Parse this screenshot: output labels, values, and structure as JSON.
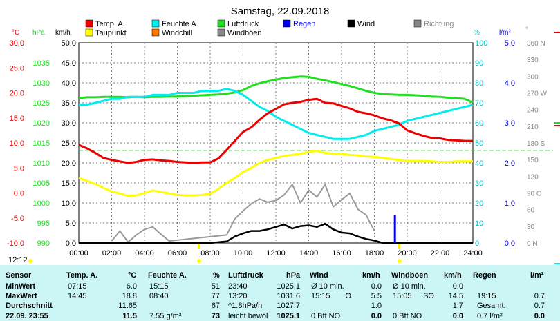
{
  "title": "Samstag, 22.09.2018",
  "clock": "12:12",
  "colors": {
    "temp": "#ee0000",
    "dew": "#ffff00",
    "humidity": "#00eeee",
    "pressure": "#22dd22",
    "windchill": "#ff7700",
    "wind": "#000000",
    "gust": "#999999",
    "rain": "#0000ee",
    "direction": "#888888"
  },
  "legend": [
    {
      "key": "temp",
      "label": "Temp. A.",
      "color": "#ee0000"
    },
    {
      "key": "humidity",
      "label": "Feuchte A.",
      "color": "#00eeee"
    },
    {
      "key": "pressure",
      "label": "Luftdruck",
      "color": "#22dd22"
    },
    {
      "key": "rain",
      "label": "Regen",
      "color": "#0000ee"
    },
    {
      "key": "wind",
      "label": "Wind",
      "color": "#000000"
    },
    {
      "key": "direction",
      "label": "Richtung",
      "color": "#888888"
    },
    {
      "key": "dew",
      "label": "Taupunkt",
      "color": "#ffff00"
    },
    {
      "key": "windchill",
      "label": "Windchill",
      "color": "#ff7700"
    },
    {
      "key": "gust",
      "label": "Windböen",
      "color": "#888888"
    }
  ],
  "chart_data": {
    "type": "line",
    "title": "Samstag, 22.09.2018",
    "x_ticks": [
      "00:00",
      "02:00",
      "04:00",
      "06:00",
      "08:00",
      "10:00",
      "12:00",
      "14:00",
      "16:00",
      "18:00",
      "20:00",
      "22:00",
      "24:00"
    ],
    "x_range_hours": [
      0,
      24
    ],
    "axes": {
      "temperature_c": {
        "unit": "°C",
        "range": [
          -10,
          30
        ],
        "ticks": [
          "30.0",
          "25.0",
          "20.0",
          "15.0",
          "10.0",
          "5.0",
          "0.0",
          "-5.0",
          "-10.0"
        ]
      },
      "pressure_hpa": {
        "unit": "hPa",
        "range": [
          990,
          1040
        ],
        "ticks": [
          "1035",
          "1030",
          "1025",
          "1020",
          "1015",
          "1010",
          "1005",
          "1000",
          "995",
          "990"
        ]
      },
      "wind_kmh": {
        "unit": "km/h",
        "range": [
          0,
          50
        ],
        "ticks": [
          "50.0",
          "45.0",
          "40.0",
          "35.0",
          "30.0",
          "25.0",
          "20.0",
          "15.0",
          "10.0",
          "5.0",
          "0.0"
        ]
      },
      "humidity_pct": {
        "unit": "%",
        "range": [
          0,
          100
        ],
        "ticks": [
          "100",
          "90",
          "80",
          "70",
          "60",
          "50",
          "40",
          "30",
          "20",
          "10",
          "0"
        ]
      },
      "rain_l": {
        "unit": "l/m²",
        "range": [
          0,
          5
        ],
        "ticks": [
          "5.0",
          "4.0",
          "3.0",
          "2.0",
          "1.0",
          "0.0"
        ]
      },
      "direction_deg": {
        "unit": "°",
        "range": [
          0,
          360
        ],
        "ticks": [
          "360 N",
          "330",
          "300",
          "270 W",
          "240",
          "210",
          "180 S",
          "150",
          "120",
          "90 O",
          "60",
          "30",
          "0 N"
        ]
      }
    },
    "dashed_reference_temp": 8.5,
    "series": [
      {
        "name": "Temp. A.",
        "unit": "°C",
        "x": [
          0,
          0.5,
          1,
          1.5,
          2,
          2.5,
          3,
          3.5,
          4,
          4.5,
          5,
          5.5,
          6,
          6.5,
          7,
          7.5,
          8,
          8.5,
          9,
          9.5,
          10,
          10.5,
          11,
          11.5,
          12,
          12.5,
          13,
          13.5,
          14,
          14.5,
          15,
          15.5,
          16,
          16.5,
          17,
          17.5,
          18,
          18.5,
          19,
          19.5,
          20,
          20.5,
          21,
          21.5,
          22,
          22.5,
          23,
          23.5,
          24
        ],
        "y": [
          9.6,
          8.9,
          8.0,
          7.0,
          6.6,
          6.3,
          6.0,
          6.2,
          6.6,
          6.7,
          6.5,
          6.4,
          6.2,
          6.1,
          6.0,
          6.1,
          6.1,
          6.9,
          8.6,
          10.4,
          12.2,
          13.1,
          14.6,
          15.9,
          16.8,
          17.7,
          18.0,
          18.2,
          18.6,
          18.8,
          18.0,
          17.9,
          17.4,
          16.9,
          16.2,
          15.9,
          15.5,
          14.9,
          14.5,
          13.9,
          12.5,
          11.9,
          11.4,
          11.0,
          10.9,
          10.6,
          10.5,
          10.4,
          10.4
        ]
      },
      {
        "name": "Taupunkt",
        "unit": "°C",
        "x": [
          0,
          0.5,
          1,
          1.5,
          2,
          2.5,
          3,
          3.5,
          4,
          4.5,
          5,
          5.5,
          6,
          6.5,
          7,
          7.5,
          8,
          8.5,
          9,
          9.5,
          10,
          10.5,
          11,
          11.5,
          12,
          12.5,
          13,
          13.5,
          14,
          14.5,
          15,
          15.5,
          16,
          16.5,
          17,
          17.5,
          18,
          18.5,
          19,
          19.5,
          20,
          20.5,
          21,
          21.5,
          22,
          22.5,
          23,
          23.5,
          24
        ],
        "y": [
          3.0,
          2.4,
          1.8,
          1.0,
          0.3,
          -0.1,
          -0.6,
          -0.5,
          0.0,
          0.5,
          0.2,
          -0.1,
          -0.4,
          -0.5,
          -0.5,
          -0.4,
          -0.2,
          0.8,
          2.0,
          3.0,
          4.2,
          5.0,
          6.0,
          6.6,
          7.0,
          7.4,
          7.6,
          7.8,
          8.2,
          8.4,
          8.0,
          7.8,
          7.8,
          7.6,
          7.5,
          7.3,
          7.2,
          7.0,
          6.8,
          6.6,
          6.4,
          6.4,
          6.4,
          6.3,
          6.2,
          6.2,
          6.3,
          6.3,
          6.3
        ]
      },
      {
        "name": "Feuchte A.",
        "unit": "%",
        "x": [
          0,
          0.5,
          1,
          1.5,
          2,
          2.5,
          3,
          3.5,
          4,
          4.5,
          5,
          5.5,
          6,
          6.5,
          7,
          7.5,
          8,
          8.5,
          9,
          9.5,
          10,
          10.5,
          11,
          11.5,
          12,
          12.5,
          13,
          13.5,
          14,
          14.5,
          15,
          15.5,
          16,
          16.5,
          17,
          17.5,
          18,
          18.5,
          19,
          19.5,
          20,
          20.5,
          21,
          21.5,
          22,
          22.5,
          23,
          23.5,
          24
        ],
        "y": [
          69,
          69,
          70,
          71,
          72,
          72,
          73,
          73,
          73,
          74,
          74,
          74,
          75,
          75,
          75,
          76,
          76,
          76,
          77,
          76,
          74,
          71,
          68,
          66,
          63,
          61,
          59,
          57,
          55,
          54,
          53,
          52,
          52,
          52,
          53,
          54,
          56,
          57,
          58,
          59,
          61,
          62,
          63,
          64,
          65,
          66,
          67,
          68,
          69
        ]
      },
      {
        "name": "Luftdruck",
        "unit": "hPa",
        "x": [
          0,
          0.5,
          1,
          1.5,
          2,
          2.5,
          3,
          3.5,
          4,
          4.5,
          5,
          5.5,
          6,
          6.5,
          7,
          7.5,
          8,
          8.5,
          9,
          9.5,
          10,
          10.5,
          11,
          11.5,
          12,
          12.5,
          13,
          13.5,
          14,
          14.5,
          15,
          15.5,
          16,
          16.5,
          17,
          17.5,
          18,
          18.5,
          19,
          19.5,
          20,
          20.5,
          21,
          21.5,
          22,
          22.5,
          23,
          23.5,
          24
        ],
        "y": [
          1026.2,
          1026.4,
          1026.4,
          1026.5,
          1026.5,
          1026.5,
          1026.4,
          1026.5,
          1026.4,
          1026.5,
          1026.5,
          1026.6,
          1026.6,
          1026.7,
          1026.8,
          1026.9,
          1027.0,
          1027.1,
          1027.3,
          1027.6,
          1028.2,
          1029.2,
          1029.9,
          1030.4,
          1030.8,
          1031.2,
          1031.4,
          1031.6,
          1031.5,
          1031.0,
          1030.6,
          1030.2,
          1029.7,
          1029.2,
          1028.6,
          1028.0,
          1027.5,
          1027.2,
          1027.1,
          1027.0,
          1027.0,
          1026.9,
          1026.8,
          1026.6,
          1026.5,
          1026.3,
          1026.2,
          1026.0,
          1025.1
        ]
      },
      {
        "name": "Wind",
        "unit": "km/h",
        "x": [
          0,
          8,
          9,
          9.5,
          10,
          10.5,
          11,
          11.5,
          12,
          12.5,
          13,
          13.5,
          14,
          14.5,
          15,
          15.5,
          16,
          16.5,
          17,
          17.5,
          18,
          18.5,
          24
        ],
        "y": [
          0,
          0,
          0.4,
          1.6,
          2.4,
          3.0,
          3.0,
          3.4,
          4.0,
          4.6,
          3.6,
          4.2,
          4.4,
          4.0,
          4.8,
          3.4,
          2.6,
          2.4,
          1.6,
          1.0,
          0.6,
          0,
          0
        ]
      },
      {
        "name": "Windböen",
        "unit": "km/h",
        "x": [
          2,
          2.5,
          3,
          3.5,
          4,
          4.5,
          5,
          5.5,
          9,
          9.5,
          10,
          10.5,
          11,
          11.5,
          12,
          12.5,
          13,
          13.5,
          14,
          14.5,
          15,
          15.5,
          16,
          16.5,
          17,
          17.5,
          18
        ],
        "y": [
          0.5,
          3.0,
          0.2,
          2.0,
          3.4,
          4.0,
          2.2,
          0.5,
          2.0,
          6.0,
          8.0,
          9.8,
          11.0,
          10.2,
          10.6,
          12.0,
          14.6,
          10.0,
          13.2,
          11.5,
          14.6,
          9.0,
          10.8,
          12.4,
          8.4,
          7.0,
          3.0
        ]
      },
      {
        "name": "Regen",
        "unit": "l/m²",
        "x": [
          19.25
        ],
        "y": [
          0.7
        ]
      }
    ]
  },
  "table": {
    "headers": {
      "sensor": "Sensor",
      "temp": "Temp. A.",
      "temp_unit": "°C",
      "hum": "Feuchte A.",
      "hum_unit": "%",
      "press": "Luftdruck",
      "press_unit": "hPa",
      "wind": "Wind",
      "wind_unit": "km/h",
      "gust": "Windböen",
      "gust_unit": "km/h",
      "rain": "Regen",
      "rain_unit": "l/m²"
    },
    "rows": [
      {
        "label": "MinWert",
        "temp_time": "07:15",
        "temp_val": "6.0",
        "hum_time": "15:15",
        "hum_val": "51",
        "press_time": "23:40",
        "press_val": "1025.1",
        "wind_time": "Ø 10 min.",
        "wind_dir": "",
        "wind_val": "0.0",
        "gust_time": "Ø 10 min.",
        "gust_dir": "",
        "gust_val": "0.0",
        "rain_time": "",
        "rain_val": ""
      },
      {
        "label": "MaxWert",
        "temp_time": "14:45",
        "temp_val": "18.8",
        "hum_time": "08:40",
        "hum_val": "77",
        "press_time": "13:20",
        "press_val": "1031.6",
        "wind_time": "15:15",
        "wind_dir": "O",
        "wind_val": "5.5",
        "gust_time": "15:05",
        "gust_dir": "SO",
        "gust_val": "14.5",
        "rain_time": "19:15",
        "rain_val": "0.7"
      },
      {
        "label": "Durchschnitt",
        "temp_time": "",
        "temp_val": "11.65",
        "hum_time": "",
        "hum_val": "67",
        "press_time": "^1.8hPa/h",
        "press_val": "1027.7",
        "wind_time": "",
        "wind_dir": "",
        "wind_val": "1.0",
        "gust_time": "",
        "gust_dir": "",
        "gust_val": "1.7",
        "rain_time": "Gesamt:",
        "rain_val": "0.7"
      },
      {
        "label": "22.09. 23:55",
        "temp_time": "",
        "temp_val": "11.5",
        "hum_time": "7.55 g/m³",
        "hum_val": "73",
        "press_time": "leicht bewöl",
        "press_val": "1025.1",
        "wind_time": "0 Bft NO",
        "wind_dir": "",
        "wind_val": "0.0",
        "gust_time": "0 Bft NO",
        "gust_dir": "",
        "gust_val": "0.0",
        "rain_time": "0.7 l/m²",
        "rain_val": "0.0"
      }
    ]
  }
}
